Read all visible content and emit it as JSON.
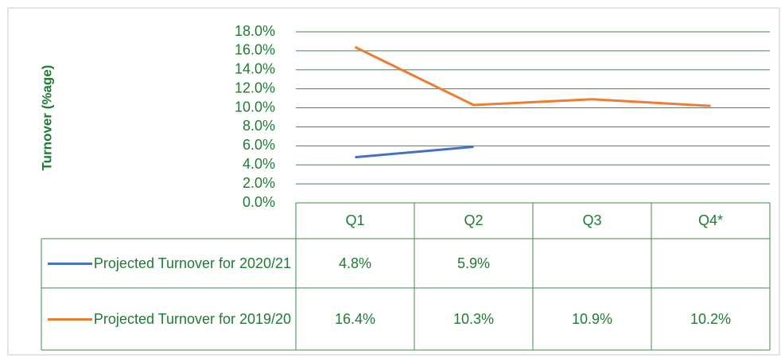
{
  "chart_data": {
    "type": "line",
    "y_label": "Turnover (%age)",
    "categories": [
      "Q1",
      "Q2",
      "Q3",
      "Q4*"
    ],
    "series": [
      {
        "name": "Projected Turnover for 2020/21",
        "color": "#4472c4",
        "values": [
          4.8,
          5.9,
          null,
          null
        ],
        "value_labels": [
          "4.8%",
          "5.9%",
          null,
          null
        ]
      },
      {
        "name": "Projected Turnover for 2019/20",
        "color": "#ed7d31",
        "values": [
          16.4,
          10.3,
          10.9,
          10.2
        ],
        "value_labels": [
          "16.4%",
          "10.3%",
          "10.9%",
          "10.2%"
        ]
      }
    ],
    "ylim": [
      0,
      18
    ],
    "yticks": [
      {
        "value": 0,
        "label": "0.0%"
      },
      {
        "value": 2,
        "label": "2.0%"
      },
      {
        "value": 4,
        "label": "4.0%"
      },
      {
        "value": 6,
        "label": "6.0%"
      },
      {
        "value": 8,
        "label": "8.0%"
      },
      {
        "value": 10,
        "label": "10.0%"
      },
      {
        "value": 12,
        "label": "12.0%"
      },
      {
        "value": 14,
        "label": "14.0%"
      },
      {
        "value": 16,
        "label": "16.0%"
      },
      {
        "value": 18,
        "label": "18.0%"
      }
    ],
    "grid": true
  }
}
